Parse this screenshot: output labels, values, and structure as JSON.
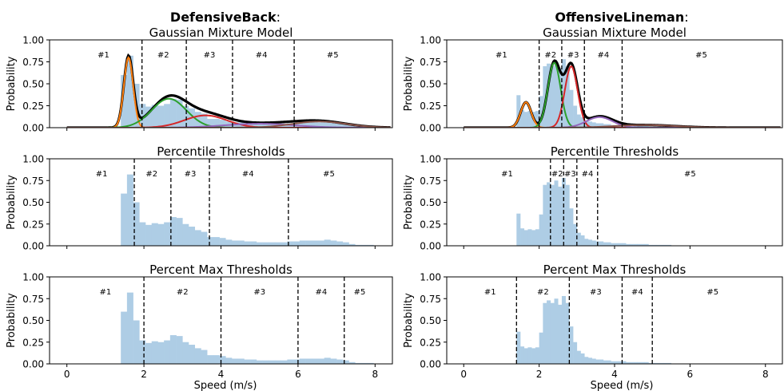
{
  "figure": {
    "xlabel": "Speed (m/s)",
    "ylabel": "Probability",
    "xticks": [
      "0",
      "2",
      "4",
      "6",
      "8"
    ],
    "yticks": [
      "0.00",
      "0.25",
      "0.50",
      "0.75",
      "1.00"
    ]
  },
  "columns": [
    {
      "position": "Defensive Back",
      "title_bold": "DefensiveBack",
      "title_suffix": ":"
    },
    {
      "position": "Offensive Lineman",
      "title_bold": "OffensiveLineman",
      "title_suffix": ":"
    }
  ],
  "colors": {
    "hist": "#aecde5",
    "mixture": "#000000",
    "components": [
      "#ff7f0e",
      "#2ca02c",
      "#d62728",
      "#9467bd",
      "#8c564b"
    ]
  },
  "chart_data": [
    {
      "type": "bar",
      "title": "Gaussian Mixture Model",
      "column": 0,
      "row": 0,
      "xlim": [
        -0.45,
        8.45
      ],
      "ylim": [
        0,
        1
      ],
      "bin_width": 0.16,
      "bins_x": [
        1.4,
        1.56,
        1.72,
        1.88,
        2.04,
        2.2,
        2.36,
        2.52,
        2.68,
        2.84,
        3.0,
        3.16,
        3.32,
        3.48,
        3.64,
        3.8,
        3.96,
        4.12,
        4.28,
        4.44,
        4.6,
        4.76,
        4.92,
        5.08,
        5.24,
        5.4,
        5.56,
        5.72,
        5.88,
        6.04,
        6.2,
        6.36,
        6.52,
        6.68,
        6.84,
        7.0,
        7.16,
        7.32,
        7.48,
        7.64,
        7.8
      ],
      "hist": [
        0.6,
        0.82,
        0.5,
        0.27,
        0.24,
        0.26,
        0.25,
        0.27,
        0.33,
        0.32,
        0.25,
        0.22,
        0.18,
        0.16,
        0.1,
        0.1,
        0.09,
        0.07,
        0.06,
        0.06,
        0.05,
        0.05,
        0.04,
        0.04,
        0.04,
        0.04,
        0.04,
        0.05,
        0.05,
        0.06,
        0.06,
        0.06,
        0.06,
        0.07,
        0.06,
        0.05,
        0.04,
        0.02,
        0.01,
        0.01,
        0.01
      ],
      "components": [
        {
          "mean": 1.6,
          "sd": 0.12,
          "peak": 0.8
        },
        {
          "mean": 2.65,
          "sd": 0.45,
          "peak": 0.33
        },
        {
          "mean": 3.6,
          "sd": 0.55,
          "peak": 0.14
        },
        {
          "mean": 5.0,
          "sd": 0.9,
          "peak": 0.045
        },
        {
          "mean": 6.55,
          "sd": 0.7,
          "peak": 0.07
        }
      ],
      "curve_range": [
        0.0,
        8.4
      ],
      "thresholds": [
        1.95,
        3.1,
        4.3,
        5.9
      ],
      "labels": [
        {
          "text": "#1",
          "x": 0.95
        },
        {
          "text": "#2",
          "x": 2.5
        },
        {
          "text": "#3",
          "x": 3.7
        },
        {
          "text": "#4",
          "x": 5.05
        },
        {
          "text": "#5",
          "x": 6.9
        }
      ]
    },
    {
      "type": "bar",
      "title": "Percentile Thresholds",
      "column": 0,
      "row": 1,
      "xlim": [
        -0.45,
        8.45
      ],
      "ylim": [
        0,
        1
      ],
      "bin_width": 0.16,
      "bins_x": [
        1.4,
        1.56,
        1.72,
        1.88,
        2.04,
        2.2,
        2.36,
        2.52,
        2.68,
        2.84,
        3.0,
        3.16,
        3.32,
        3.48,
        3.64,
        3.8,
        3.96,
        4.12,
        4.28,
        4.44,
        4.6,
        4.76,
        4.92,
        5.08,
        5.24,
        5.4,
        5.56,
        5.72,
        5.88,
        6.04,
        6.2,
        6.36,
        6.52,
        6.68,
        6.84,
        7.0,
        7.16,
        7.32,
        7.48,
        7.64,
        7.8
      ],
      "hist": [
        0.6,
        0.82,
        0.5,
        0.27,
        0.24,
        0.26,
        0.25,
        0.27,
        0.33,
        0.32,
        0.25,
        0.22,
        0.18,
        0.16,
        0.1,
        0.1,
        0.09,
        0.07,
        0.06,
        0.06,
        0.05,
        0.05,
        0.04,
        0.04,
        0.04,
        0.04,
        0.04,
        0.05,
        0.05,
        0.06,
        0.06,
        0.06,
        0.06,
        0.07,
        0.06,
        0.05,
        0.04,
        0.02,
        0.01,
        0.01,
        0.01
      ],
      "thresholds": [
        1.75,
        2.7,
        3.7,
        5.75
      ],
      "labels": [
        {
          "text": "#1",
          "x": 0.9
        },
        {
          "text": "#2",
          "x": 2.2
        },
        {
          "text": "#3",
          "x": 3.2
        },
        {
          "text": "#4",
          "x": 4.7
        },
        {
          "text": "#5",
          "x": 6.8
        }
      ]
    },
    {
      "type": "bar",
      "title": "Percent Max Thresholds",
      "column": 0,
      "row": 2,
      "xlim": [
        -0.45,
        8.45
      ],
      "ylim": [
        0,
        1
      ],
      "bin_width": 0.16,
      "bins_x": [
        1.4,
        1.56,
        1.72,
        1.88,
        2.04,
        2.2,
        2.36,
        2.52,
        2.68,
        2.84,
        3.0,
        3.16,
        3.32,
        3.48,
        3.64,
        3.8,
        3.96,
        4.12,
        4.28,
        4.44,
        4.6,
        4.76,
        4.92,
        5.08,
        5.24,
        5.4,
        5.56,
        5.72,
        5.88,
        6.04,
        6.2,
        6.36,
        6.52,
        6.68,
        6.84,
        7.0,
        7.16,
        7.32,
        7.48,
        7.64,
        7.8
      ],
      "hist": [
        0.6,
        0.82,
        0.5,
        0.27,
        0.24,
        0.26,
        0.25,
        0.27,
        0.33,
        0.32,
        0.25,
        0.22,
        0.18,
        0.16,
        0.1,
        0.1,
        0.09,
        0.07,
        0.06,
        0.06,
        0.05,
        0.05,
        0.04,
        0.04,
        0.04,
        0.04,
        0.04,
        0.05,
        0.05,
        0.06,
        0.06,
        0.06,
        0.06,
        0.07,
        0.06,
        0.05,
        0.04,
        0.02,
        0.01,
        0.01,
        0.01
      ],
      "thresholds": [
        2.0,
        4.0,
        6.0,
        7.2
      ],
      "labels": [
        {
          "text": "#1",
          "x": 1.0
        },
        {
          "text": "#2",
          "x": 3.0
        },
        {
          "text": "#3",
          "x": 5.0
        },
        {
          "text": "#4",
          "x": 6.6
        },
        {
          "text": "#5",
          "x": 7.6
        }
      ]
    },
    {
      "type": "bar",
      "title": "Gaussian Mixture Model",
      "column": 1,
      "row": 0,
      "xlim": [
        -0.45,
        8.45
      ],
      "ylim": [
        0,
        1
      ],
      "bin_width": 0.1,
      "bins_x": [
        1.4,
        1.5,
        1.6,
        1.7,
        1.8,
        1.9,
        2.0,
        2.1,
        2.2,
        2.3,
        2.4,
        2.5,
        2.6,
        2.7,
        2.8,
        2.9,
        3.0,
        3.1,
        3.2,
        3.3,
        3.4,
        3.5,
        3.6,
        3.7,
        3.8,
        3.9,
        4.0,
        4.1,
        4.2,
        4.3,
        4.4,
        4.5,
        4.6,
        4.7,
        4.8,
        4.9,
        5.0,
        5.1,
        5.2,
        5.3,
        5.4
      ],
      "hist": [
        0.37,
        0.2,
        0.18,
        0.19,
        0.18,
        0.19,
        0.36,
        0.7,
        0.73,
        0.7,
        0.75,
        0.68,
        0.78,
        0.7,
        0.43,
        0.25,
        0.15,
        0.12,
        0.08,
        0.07,
        0.06,
        0.05,
        0.05,
        0.04,
        0.04,
        0.03,
        0.03,
        0.03,
        0.03,
        0.02,
        0.02,
        0.02,
        0.02,
        0.02,
        0.02,
        0.01,
        0.01,
        0.01,
        0.01,
        0.01,
        0.01
      ],
      "components": [
        {
          "mean": 1.65,
          "sd": 0.14,
          "peak": 0.29
        },
        {
          "mean": 2.4,
          "sd": 0.17,
          "peak": 0.74
        },
        {
          "mean": 2.85,
          "sd": 0.17,
          "peak": 0.7
        },
        {
          "mean": 3.6,
          "sd": 0.35,
          "peak": 0.12
        },
        {
          "mean": 4.8,
          "sd": 0.8,
          "peak": 0.03
        }
      ],
      "curve_range": [
        0.0,
        8.4
      ],
      "thresholds": [
        2.0,
        2.6,
        3.2,
        4.2
      ],
      "labels": [
        {
          "text": "#1",
          "x": 1.0
        },
        {
          "text": "#2",
          "x": 2.3
        },
        {
          "text": "#3",
          "x": 2.9
        },
        {
          "text": "#4",
          "x": 3.7
        },
        {
          "text": "#5",
          "x": 6.3
        }
      ]
    },
    {
      "type": "bar",
      "title": "Percentile Thresholds",
      "column": 1,
      "row": 1,
      "xlim": [
        -0.45,
        8.45
      ],
      "ylim": [
        0,
        1
      ],
      "bin_width": 0.1,
      "bins_x": [
        1.4,
        1.5,
        1.6,
        1.7,
        1.8,
        1.9,
        2.0,
        2.1,
        2.2,
        2.3,
        2.4,
        2.5,
        2.6,
        2.7,
        2.8,
        2.9,
        3.0,
        3.1,
        3.2,
        3.3,
        3.4,
        3.5,
        3.6,
        3.7,
        3.8,
        3.9,
        4.0,
        4.1,
        4.2,
        4.3,
        4.4,
        4.5,
        4.6,
        4.7,
        4.8,
        4.9,
        5.0,
        5.1,
        5.2,
        5.3,
        5.4
      ],
      "hist": [
        0.37,
        0.2,
        0.18,
        0.19,
        0.18,
        0.19,
        0.36,
        0.7,
        0.73,
        0.7,
        0.75,
        0.68,
        0.78,
        0.7,
        0.43,
        0.25,
        0.15,
        0.12,
        0.08,
        0.07,
        0.06,
        0.05,
        0.05,
        0.04,
        0.04,
        0.03,
        0.03,
        0.03,
        0.03,
        0.02,
        0.02,
        0.02,
        0.02,
        0.02,
        0.02,
        0.01,
        0.01,
        0.01,
        0.01,
        0.01,
        0.01
      ],
      "thresholds": [
        2.3,
        2.65,
        3.0,
        3.55
      ],
      "labels": [
        {
          "text": "#1",
          "x": 1.15
        },
        {
          "text": "#2",
          "x": 2.48
        },
        {
          "text": "#3",
          "x": 2.82
        },
        {
          "text": "#4",
          "x": 3.28
        },
        {
          "text": "#5",
          "x": 6.0
        }
      ]
    },
    {
      "type": "bar",
      "title": "Percent Max Thresholds",
      "column": 1,
      "row": 2,
      "xlim": [
        -0.45,
        8.45
      ],
      "ylim": [
        0,
        1
      ],
      "bin_width": 0.1,
      "bins_x": [
        1.4,
        1.5,
        1.6,
        1.7,
        1.8,
        1.9,
        2.0,
        2.1,
        2.2,
        2.3,
        2.4,
        2.5,
        2.6,
        2.7,
        2.8,
        2.9,
        3.0,
        3.1,
        3.2,
        3.3,
        3.4,
        3.5,
        3.6,
        3.7,
        3.8,
        3.9,
        4.0,
        4.1,
        4.2,
        4.3,
        4.4,
        4.5,
        4.6,
        4.7,
        4.8,
        4.9,
        5.0,
        5.1,
        5.2,
        5.3,
        5.4
      ],
      "hist": [
        0.37,
        0.2,
        0.18,
        0.19,
        0.18,
        0.19,
        0.36,
        0.7,
        0.73,
        0.7,
        0.75,
        0.68,
        0.78,
        0.7,
        0.43,
        0.25,
        0.15,
        0.12,
        0.08,
        0.07,
        0.06,
        0.05,
        0.05,
        0.04,
        0.04,
        0.03,
        0.03,
        0.03,
        0.03,
        0.02,
        0.02,
        0.02,
        0.02,
        0.02,
        0.02,
        0.01,
        0.01,
        0.01,
        0.01,
        0.01,
        0.01
      ],
      "thresholds": [
        1.4,
        2.8,
        4.2,
        5.0
      ],
      "labels": [
        {
          "text": "#1",
          "x": 0.7
        },
        {
          "text": "#2",
          "x": 2.1
        },
        {
          "text": "#3",
          "x": 3.5
        },
        {
          "text": "#4",
          "x": 4.6
        },
        {
          "text": "#5",
          "x": 6.6
        }
      ]
    }
  ]
}
